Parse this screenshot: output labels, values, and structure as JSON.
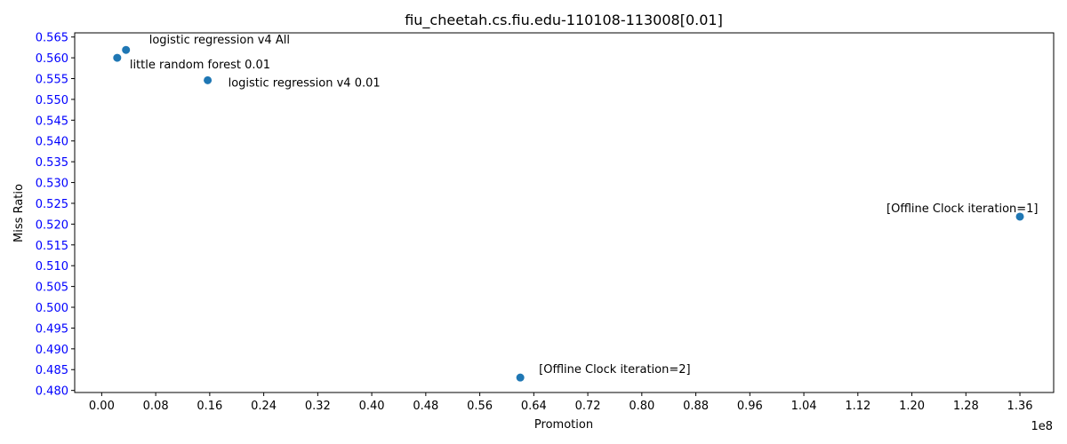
{
  "chart_data": {
    "type": "scatter",
    "title": "fiu_cheetah.cs.fiu.edu-110108-113008[0.01]",
    "xlabel": "Promotion",
    "ylabel": "Miss Ratio",
    "x_offset_text": "1e8",
    "xlim": [
      -0.04,
      1.41
    ],
    "ylim": [
      0.4795,
      0.566
    ],
    "x_ticks": [
      0.0,
      0.08,
      0.16,
      0.24,
      0.32,
      0.4,
      0.48,
      0.56,
      0.64,
      0.72,
      0.8,
      0.88,
      0.96,
      1.04,
      1.12,
      1.2,
      1.28,
      1.36
    ],
    "x_tick_labels": [
      "0.00",
      "0.08",
      "0.16",
      "0.24",
      "0.32",
      "0.40",
      "0.48",
      "0.56",
      "0.64",
      "0.72",
      "0.80",
      "0.88",
      "0.96",
      "1.04",
      "1.12",
      "1.20",
      "1.28",
      "1.36"
    ],
    "y_ticks": [
      0.48,
      0.485,
      0.49,
      0.495,
      0.5,
      0.505,
      0.51,
      0.515,
      0.52,
      0.525,
      0.53,
      0.535,
      0.54,
      0.545,
      0.55,
      0.555,
      0.56,
      0.565
    ],
    "y_tick_labels": [
      "0.480",
      "0.485",
      "0.490",
      "0.495",
      "0.500",
      "0.505",
      "0.510",
      "0.515",
      "0.520",
      "0.525",
      "0.530",
      "0.535",
      "0.540",
      "0.545",
      "0.550",
      "0.555",
      "0.560",
      "0.565"
    ],
    "grid": false,
    "points": [
      {
        "label": "logistic regression v4 All",
        "x": 0.036,
        "y": 0.5619
      },
      {
        "label": "little random forest 0.01",
        "x": 0.023,
        "y": 0.56
      },
      {
        "label": "logistic regression v4 0.01",
        "x": 0.157,
        "y": 0.5546
      },
      {
        "label": "[Offline Clock iteration=1]",
        "x": 1.36,
        "y": 0.5218
      },
      {
        "label": "[Offline Clock iteration=2]",
        "x": 0.62,
        "y": 0.4831
      }
    ],
    "colors": {
      "marker": "#1f77b4",
      "y_tick_labels": "#0000ff",
      "text": "#000000",
      "axes": "#000000"
    }
  }
}
